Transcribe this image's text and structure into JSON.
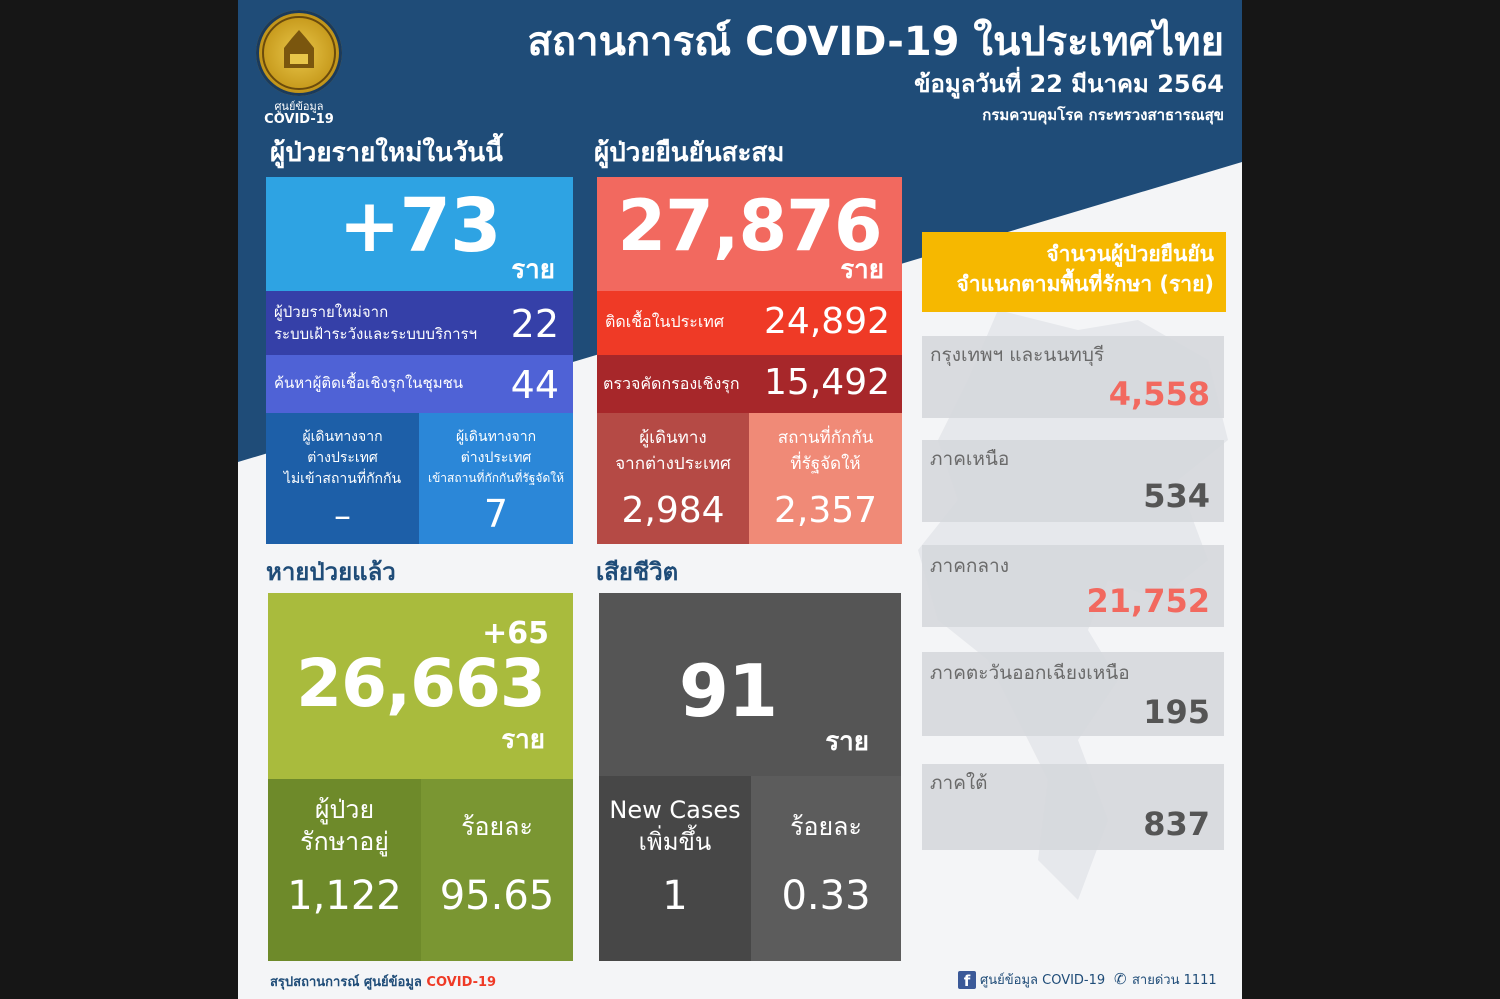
{
  "header": {
    "logo_caption_line1": "ศูนย์ข้อมูล",
    "logo_caption_line2": "COVID-19",
    "title": "สถานการณ์ COVID-19 ในประเทศไทย",
    "date": "ข้อมูลวันที่ 22 มีนาคม 2564",
    "source": "กรมควบคุมโรค กระทรวงสาธารณสุข"
  },
  "new_cases": {
    "heading": "ผู้ป่วยรายใหม่ในวันนี้",
    "total": "+73",
    "unit": "ราย",
    "surveillance_label_line1": "ผู้ป่วยรายใหม่จาก",
    "surveillance_label_line2": "ระบบเฝ้าระวังและระบบบริการฯ",
    "surveillance_value": "22",
    "active_search_label": "ค้นหาผู้ติดเชื้อเชิงรุกในชุมชน",
    "active_search_value": "44",
    "traveler_noquarantine_line1": "ผู้เดินทางจาก",
    "traveler_noquarantine_line2": "ต่างประเทศ",
    "traveler_noquarantine_line3": "ไม่เข้าสถานที่กักกัน",
    "traveler_noquarantine_value": "–",
    "traveler_quarantine_line1": "ผู้เดินทางจาก",
    "traveler_quarantine_line2": "ต่างประเทศ",
    "traveler_quarantine_line3": "เข้าสถานที่กักกันที่รัฐจัดให้",
    "traveler_quarantine_value": "7"
  },
  "cumulative": {
    "heading": "ผู้ป่วยยืนยันสะสม",
    "total": "27,876",
    "unit": "ราย",
    "domestic_label": "ติดเชื้อในประเทศ",
    "domestic_value": "24,892",
    "screening_label": "ตรวจคัดกรองเชิงรุก",
    "screening_value": "15,492",
    "imported_line1": "ผู้เดินทาง",
    "imported_line2": "จากต่างประเทศ",
    "imported_value": "2,984",
    "state_quarantine_line1": "สถานที่กักกัน",
    "state_quarantine_line2": "ที่รัฐจัดให้",
    "state_quarantine_value": "2,357"
  },
  "recovered": {
    "heading": "หายป่วยแล้ว",
    "increase": "+65",
    "total": "26,663",
    "unit": "ราย",
    "in_treatment_line1": "ผู้ป่วย",
    "in_treatment_line2": "รักษาอยู่",
    "in_treatment_value": "1,122",
    "percent_label": "ร้อยละ",
    "percent_value": "95.65"
  },
  "deaths": {
    "heading": "เสียชีวิต",
    "total": "91",
    "unit": "ราย",
    "new_label_line1": "New Cases",
    "new_label_line2": "เพิ่มขึ้น",
    "new_value": "1",
    "percent_label": "ร้อยละ",
    "percent_value": "0.33"
  },
  "regions": {
    "heading_line1": "จำนวนผู้ป่วยยืนยัน",
    "heading_line2": "จำแนกตามพื้นที่รักษา (ราย)",
    "items": [
      {
        "name": "กรุงเทพฯ และนนทบุรี",
        "value": "4,558"
      },
      {
        "name": "ภาคเหนือ",
        "value": "534"
      },
      {
        "name": "ภาคกลาง",
        "value": "21,752"
      },
      {
        "name": "ภาคตะวันออกเฉียงเหนือ",
        "value": "195"
      },
      {
        "name": "ภาคใต้",
        "value": "837"
      }
    ]
  },
  "footer": {
    "summary_prefix": "สรุปสถานการณ์ ศูนย์ข้อมูล",
    "summary_highlight": "COVID-19",
    "facebook_label": "ศูนย์ข้อมูล COVID-19",
    "hotline_label": "สายด่วน 1111"
  },
  "colors": {
    "header_navy": "#1f4c78",
    "new_cases_blue": "#2ea3e3",
    "new_cases_indigo": "#3540a8",
    "new_cases_violet": "#4f62d6",
    "cumulative_coral": "#f2695f",
    "cumulative_red": "#ef3a26",
    "cumulative_dark_red": "#a7272a",
    "recovered_green": "#a9bb3d",
    "recovered_dark_green": "#6e8a2a",
    "deaths_gray": "#555555",
    "region_yellow": "#f6b800",
    "region_red_value": "#f2695f",
    "region_gray_value": "#555555"
  }
}
